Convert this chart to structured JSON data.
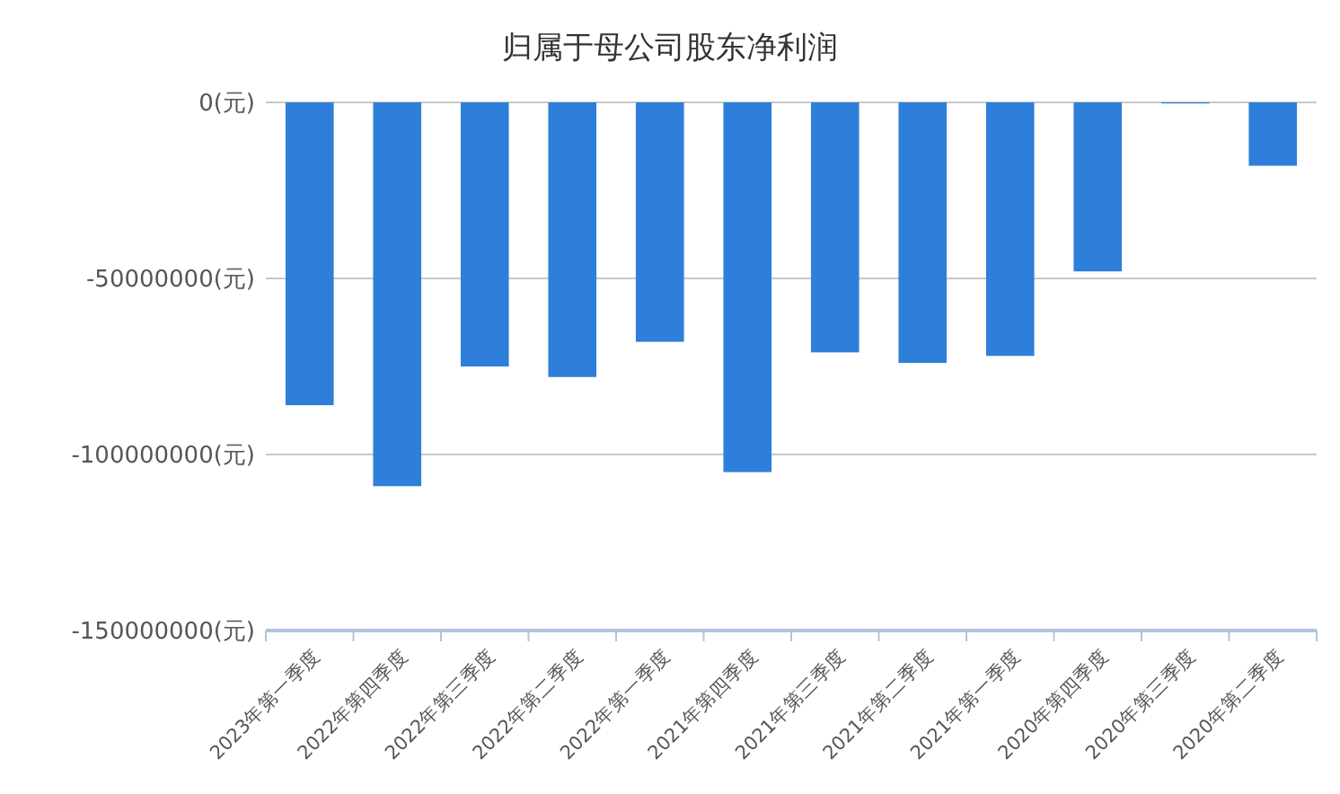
{
  "chart_data": {
    "type": "bar",
    "title": "归属于母公司股东净利润",
    "categories": [
      "2023年第一季度",
      "2022年第四季度",
      "2022年第三季度",
      "2022年第二季度",
      "2022年第一季度",
      "2021年第四季度",
      "2021年第三季度",
      "2021年第二季度",
      "2021年第一季度",
      "2020年第四季度",
      "2020年第三季度",
      "2020年第二季度"
    ],
    "values": [
      -86000000,
      -109000000,
      -75000000,
      -78000000,
      -68000000,
      -105000000,
      -71000000,
      -74000000,
      -72000000,
      -48000000,
      -300000,
      -18000000
    ],
    "color": "#2e7fd9",
    "ylim": [
      -150000000,
      0
    ],
    "yticks": [
      {
        "value": -150000000,
        "label": "-150000000(元)"
      },
      {
        "value": -100000000,
        "label": "-100000000(元)"
      },
      {
        "value": -50000000,
        "label": "-50000000(元)"
      },
      {
        "value": 0,
        "label": "0(元)"
      }
    ],
    "grid": "y"
  }
}
